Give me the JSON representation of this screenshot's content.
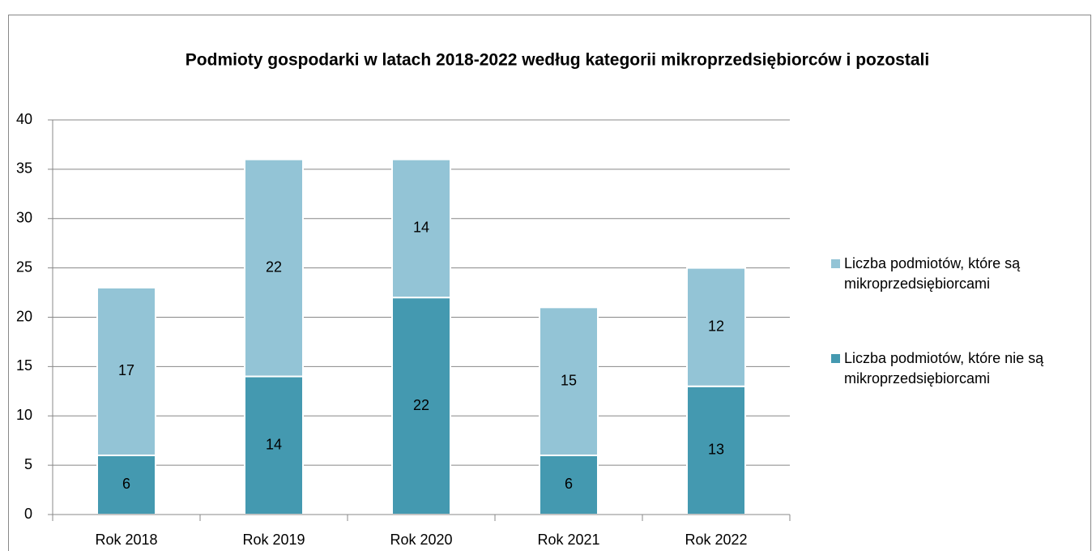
{
  "chart_data": {
    "type": "stacked_bar",
    "title": "Podmioty gospodarki w latach 2018-2022 według kategorii mikroprzedsiębiorców i pozostali",
    "categories": [
      "Rok 2018",
      "Rok 2019",
      "Rok 2020",
      "Rok 2021",
      "Rok 2022"
    ],
    "series": [
      {
        "name": "Liczba podmiotów, które nie są mikroprzedsiębiorcami",
        "color": "#4499b0",
        "values": [
          6,
          14,
          22,
          6,
          13
        ]
      },
      {
        "name": "Liczba podmiotów, które są mikroprzedsiębiorcami",
        "color": "#93c4d6",
        "values": [
          17,
          22,
          14,
          15,
          12
        ]
      }
    ],
    "ylim": [
      0,
      40
    ],
    "yticks": [
      0,
      5,
      10,
      15,
      20,
      25,
      30,
      35,
      40
    ],
    "grid": true,
    "legend": "right"
  }
}
